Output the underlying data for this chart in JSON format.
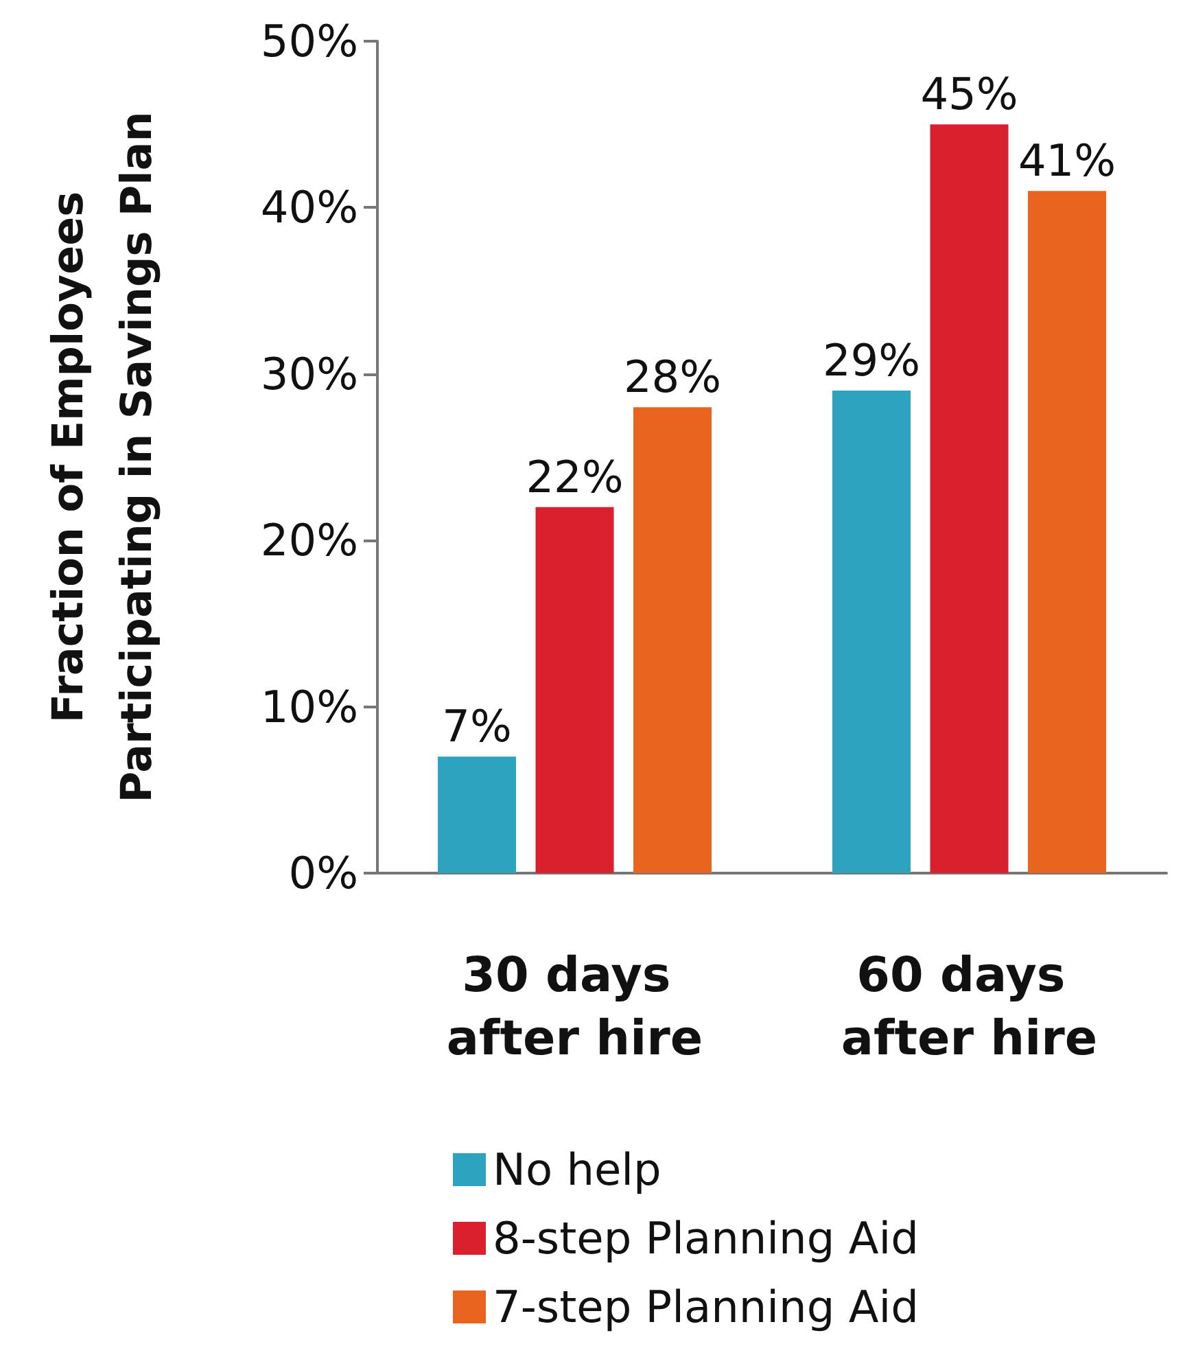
{
  "chart_data": {
    "type": "bar",
    "ylabel": "Fraction of Employees\nParticipating in Savings Plan",
    "categories": [
      "30 days after hire",
      "60 days after hire"
    ],
    "series": [
      {
        "name": "No help",
        "color": "#2ea3c0",
        "values": [
          7,
          29
        ],
        "value_labels": [
          "7%",
          "29%"
        ]
      },
      {
        "name": "8-step Planning Aid",
        "color": "#d9202c",
        "values": [
          22,
          45
        ],
        "value_labels": [
          "22%",
          "45%"
        ]
      },
      {
        "name": "7-step Planning Aid",
        "color": "#e8641f",
        "values": [
          28,
          41
        ],
        "value_labels": [
          "28%",
          "41%"
        ]
      }
    ],
    "ylim": [
      0,
      50
    ],
    "yticks": [
      {
        "value": 0,
        "label": "0%"
      },
      {
        "value": 10,
        "label": "10%"
      },
      {
        "value": 20,
        "label": "20%"
      },
      {
        "value": 30,
        "label": "30%"
      },
      {
        "value": 40,
        "label": "40%"
      },
      {
        "value": 50,
        "label": "50%"
      }
    ],
    "grid": false,
    "legend": "bottom"
  }
}
